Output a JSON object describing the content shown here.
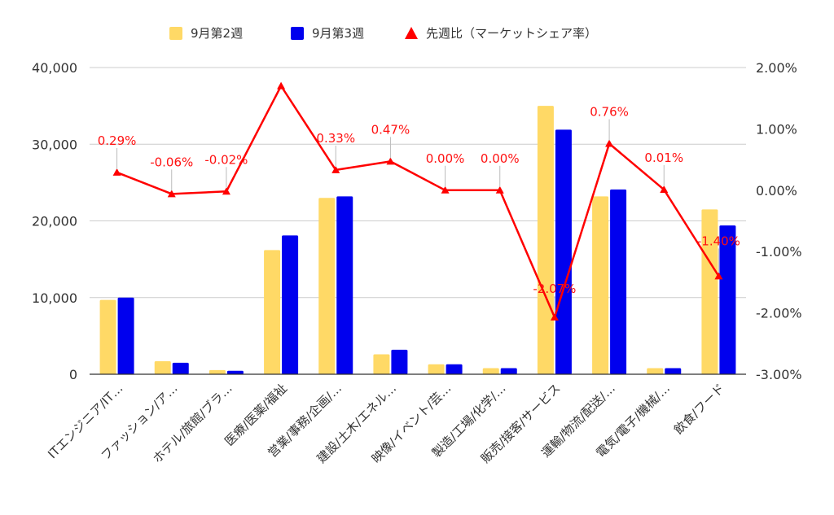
{
  "chart_data": {
    "type": "bar",
    "categories": [
      "ITエンジニア/IT…",
      "ファッション/ア…",
      "ホテル/旅館/ブラ…",
      "医療/医薬/福祉",
      "営業/事務/企画/…",
      "建設/土木/エネル…",
      "映像/イベント/芸…",
      "製造/工場/化学/…",
      "販売/接客/サービス",
      "運輸/物流/配送/…",
      "電気/電子/機械/…",
      "飲食/フード"
    ],
    "series": [
      {
        "name": "9月第2週",
        "kind": "bar",
        "axis": "left",
        "color": "#ffd966",
        "values": [
          9700,
          1700,
          550,
          16200,
          23000,
          2600,
          1300,
          800,
          35000,
          23200,
          800,
          21500
        ]
      },
      {
        "name": "9月第3週",
        "kind": "bar",
        "axis": "left",
        "color": "#0000ee",
        "values": [
          10000,
          1500,
          450,
          18100,
          23200,
          3200,
          1300,
          800,
          31900,
          24100,
          800,
          19400
        ]
      },
      {
        "name": "先週比（マーケットシェア率）",
        "kind": "line",
        "axis": "right",
        "color": "#ff0000",
        "values": [
          0.29,
          -0.06,
          -0.02,
          1.7,
          0.33,
          0.47,
          0.0,
          0.0,
          -2.07,
          0.76,
          0.01,
          -1.4
        ]
      }
    ],
    "data_labels": [
      "0.29%",
      "-0.06%",
      "-0.02%",
      "",
      "0.33%",
      "0.47%",
      "0.00%",
      "0.00%",
      "-2.07%",
      "0.76%",
      "0.01%",
      "-1.40%"
    ],
    "y_left": {
      "ticks": [
        "0",
        "10,000",
        "20,000",
        "30,000",
        "40,000"
      ],
      "values": [
        0,
        10000,
        20000,
        30000,
        40000
      ],
      "ylim": [
        0,
        40000
      ]
    },
    "y_right": {
      "ticks": [
        "-3.00%",
        "-2.00%",
        "-1.00%",
        "0.00%",
        "1.00%",
        "2.00%"
      ],
      "values": [
        -3,
        -2,
        -1,
        0,
        1,
        2
      ],
      "ylim": [
        -3,
        2
      ]
    },
    "grid": true,
    "legend_position": "top"
  }
}
